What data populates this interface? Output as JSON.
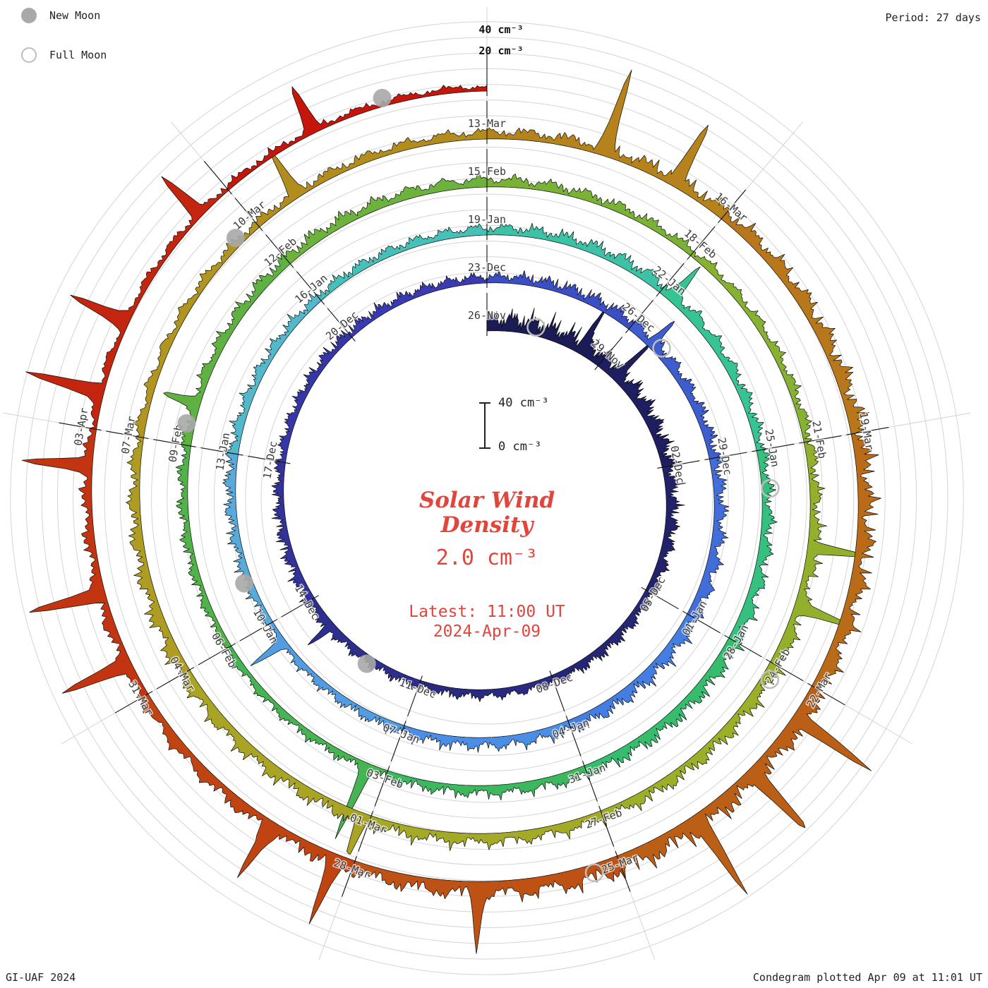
{
  "colors": {
    "accent_red": "#e2453c",
    "text": "#222222",
    "date_label": "#3a3a3a",
    "grid": "#d4d4d4",
    "moon_fill": "#a9a9a9",
    "moon_stroke": "#bdbdbd",
    "spike_stroke": "#0a0a0a"
  },
  "legend": {
    "new_moon": "New Moon",
    "full_moon": "Full Moon"
  },
  "header": {
    "period": "Period: 27 days"
  },
  "outer_scale": {
    "t40": "40 cm⁻³",
    "t20": "20 cm⁻³"
  },
  "center": {
    "scale_top": "40 cm⁻³",
    "scale_bottom": "0 cm⁻³",
    "title_line1": "Solar Wind",
    "title_line2": "Density",
    "value": "2.0 cm⁻³",
    "latest_line1": "Latest: 11:00 UT",
    "latest_line2": "2024-Apr-09"
  },
  "footer": {
    "left": "GI-UAF 2024",
    "right": "Condegram plotted Apr 09 at 11:01 UT"
  },
  "chart_data": {
    "type": "area",
    "layout": "spiral_condegram",
    "title": "Solar Wind Density",
    "units": "cm⁻³",
    "period_days": 27,
    "days_per_label": 3,
    "start_label": "26-Nov",
    "end_date": "2024-Apr-09",
    "current_value_cm3": 2.0,
    "radial_ticks": [
      "0 cm⁻³",
      "20 cm⁻³",
      "40 cm⁻³"
    ],
    "radial_range_cm3": [
      0,
      40
    ],
    "grid": true,
    "segments": [
      {
        "label": "26-Nov",
        "color": "#1b1b55",
        "base": 15
      },
      {
        "label": "29-Nov",
        "color": "#1e1e60",
        "base": 16
      },
      {
        "label": "02-Dec",
        "color": "#22226b",
        "base": 12
      },
      {
        "label": "05-Dec",
        "color": "#262676",
        "base": 10
      },
      {
        "label": "08-Dec",
        "color": "#2a2a82",
        "base": 9
      },
      {
        "label": "11-Dec",
        "color": "#2e2e8e",
        "base": 8
      },
      {
        "label": "14-Dec",
        "color": "#32329a",
        "base": 10
      },
      {
        "label": "17-Dec",
        "color": "#3636a6",
        "base": 8
      },
      {
        "label": "20-Dec",
        "color": "#3a3ab2",
        "base": 9
      },
      {
        "label": "23-Dec",
        "color": "#3b4ec4",
        "base": 8
      },
      {
        "label": "26-Dec",
        "color": "#3e5ed0",
        "base": 12
      },
      {
        "label": "29-Dec",
        "color": "#416eda",
        "base": 10
      },
      {
        "label": "01-Jan",
        "color": "#457ee2",
        "base": 13
      },
      {
        "label": "04-Jan",
        "color": "#4b8ee6",
        "base": 12
      },
      {
        "label": "07-Jan",
        "color": "#529ce2",
        "base": 9
      },
      {
        "label": "10-Jan",
        "color": "#58aada",
        "base": 7
      },
      {
        "label": "13-Jan",
        "color": "#53b8cc",
        "base": 10
      },
      {
        "label": "16-Jan",
        "color": "#47c0ba",
        "base": 8
      },
      {
        "label": "19-Jan",
        "color": "#3dc2a6",
        "base": 9
      },
      {
        "label": "22-Jan",
        "color": "#38c392",
        "base": 12
      },
      {
        "label": "25-Jan",
        "color": "#35c07f",
        "base": 9
      },
      {
        "label": "28-Jan",
        "color": "#36bc6d",
        "base": 13
      },
      {
        "label": "31-Jan",
        "color": "#3cb85e",
        "base": 11
      },
      {
        "label": "03-Feb",
        "color": "#46b452",
        "base": 8
      },
      {
        "label": "06-Feb",
        "color": "#52b24a",
        "base": 7
      },
      {
        "label": "09-Feb",
        "color": "#5fb242",
        "base": 9
      },
      {
        "label": "12-Feb",
        "color": "#6db23c",
        "base": 11
      },
      {
        "label": "15-Feb",
        "color": "#7ab236",
        "base": 10
      },
      {
        "label": "18-Feb",
        "color": "#87b231",
        "base": 8
      },
      {
        "label": "21-Feb",
        "color": "#93b02d",
        "base": 9
      },
      {
        "label": "24-Feb",
        "color": "#9dae29",
        "base": 12
      },
      {
        "label": "27-Feb",
        "color": "#a5aa26",
        "base": 10
      },
      {
        "label": "01-Mar",
        "color": "#aaa424",
        "base": 11
      },
      {
        "label": "04-Mar",
        "color": "#ae9d22",
        "base": 13
      },
      {
        "label": "07-Mar",
        "color": "#b19520",
        "base": 9
      },
      {
        "label": "10-Mar",
        "color": "#b38c1e",
        "base": 8
      },
      {
        "label": "13-Mar",
        "color": "#b5821c",
        "base": 9
      },
      {
        "label": "16-Mar",
        "color": "#b7771a",
        "base": 12
      },
      {
        "label": "19-Mar",
        "color": "#b96b18",
        "base": 14
      },
      {
        "label": "22-Mar",
        "color": "#bb5f16",
        "base": 14
      },
      {
        "label": "25-Mar",
        "color": "#bd5214",
        "base": 18
      },
      {
        "label": "28-Mar",
        "color": "#c04412",
        "base": 12
      },
      {
        "label": "31-Mar",
        "color": "#c23510",
        "base": 11
      },
      {
        "label": "03-Apr",
        "color": "#c4250e",
        "base": 8
      }
    ],
    "tail": {
      "days": 3,
      "color": "#c6150a",
      "base": 6
    },
    "spikes": [
      {
        "day": 2.4,
        "value": 38
      },
      {
        "day": 3.5,
        "value": 30
      },
      {
        "day": 17.3,
        "value": 26
      },
      {
        "day": 30.5,
        "value": 22
      },
      {
        "day": 44.6,
        "value": 30
      },
      {
        "day": 57.2,
        "value": 28
      },
      {
        "day": 69.3,
        "value": 62
      },
      {
        "day": 75.6,
        "value": 26
      },
      {
        "day": 88.4,
        "value": 50
      },
      {
        "day": 89.2,
        "value": 42
      },
      {
        "day": 96.1,
        "value": 36
      },
      {
        "day": 105.6,
        "value": 40
      },
      {
        "day": 109.4,
        "value": 68
      },
      {
        "day": 110.3,
        "value": 55
      },
      {
        "day": 117.4,
        "value": 75
      },
      {
        "day": 118.2,
        "value": 60
      },
      {
        "day": 119.0,
        "value": 66
      },
      {
        "day": 121.6,
        "value": 45
      },
      {
        "day": 123.2,
        "value": 58
      },
      {
        "day": 124.0,
        "value": 46
      },
      {
        "day": 126.4,
        "value": 55
      },
      {
        "day": 127.2,
        "value": 62
      },
      {
        "day": 128.6,
        "value": 58
      },
      {
        "day": 129.4,
        "value": 66
      },
      {
        "day": 130.2,
        "value": 50
      },
      {
        "day": 131.6,
        "value": 44
      },
      {
        "day": 133.1,
        "value": 40
      }
    ],
    "moons": [
      {
        "type": "full",
        "day": 1.2
      },
      {
        "type": "new",
        "day": 16.2
      },
      {
        "type": "full",
        "day": 30.7
      },
      {
        "type": "new",
        "day": 45.8
      },
      {
        "type": "full",
        "day": 60.6
      },
      {
        "type": "new",
        "day": 75.3
      },
      {
        "type": "full",
        "day": 90.2
      },
      {
        "type": "new",
        "day": 104.7
      },
      {
        "type": "full",
        "day": 120.3
      },
      {
        "type": "new",
        "day": 133.9
      }
    ]
  }
}
